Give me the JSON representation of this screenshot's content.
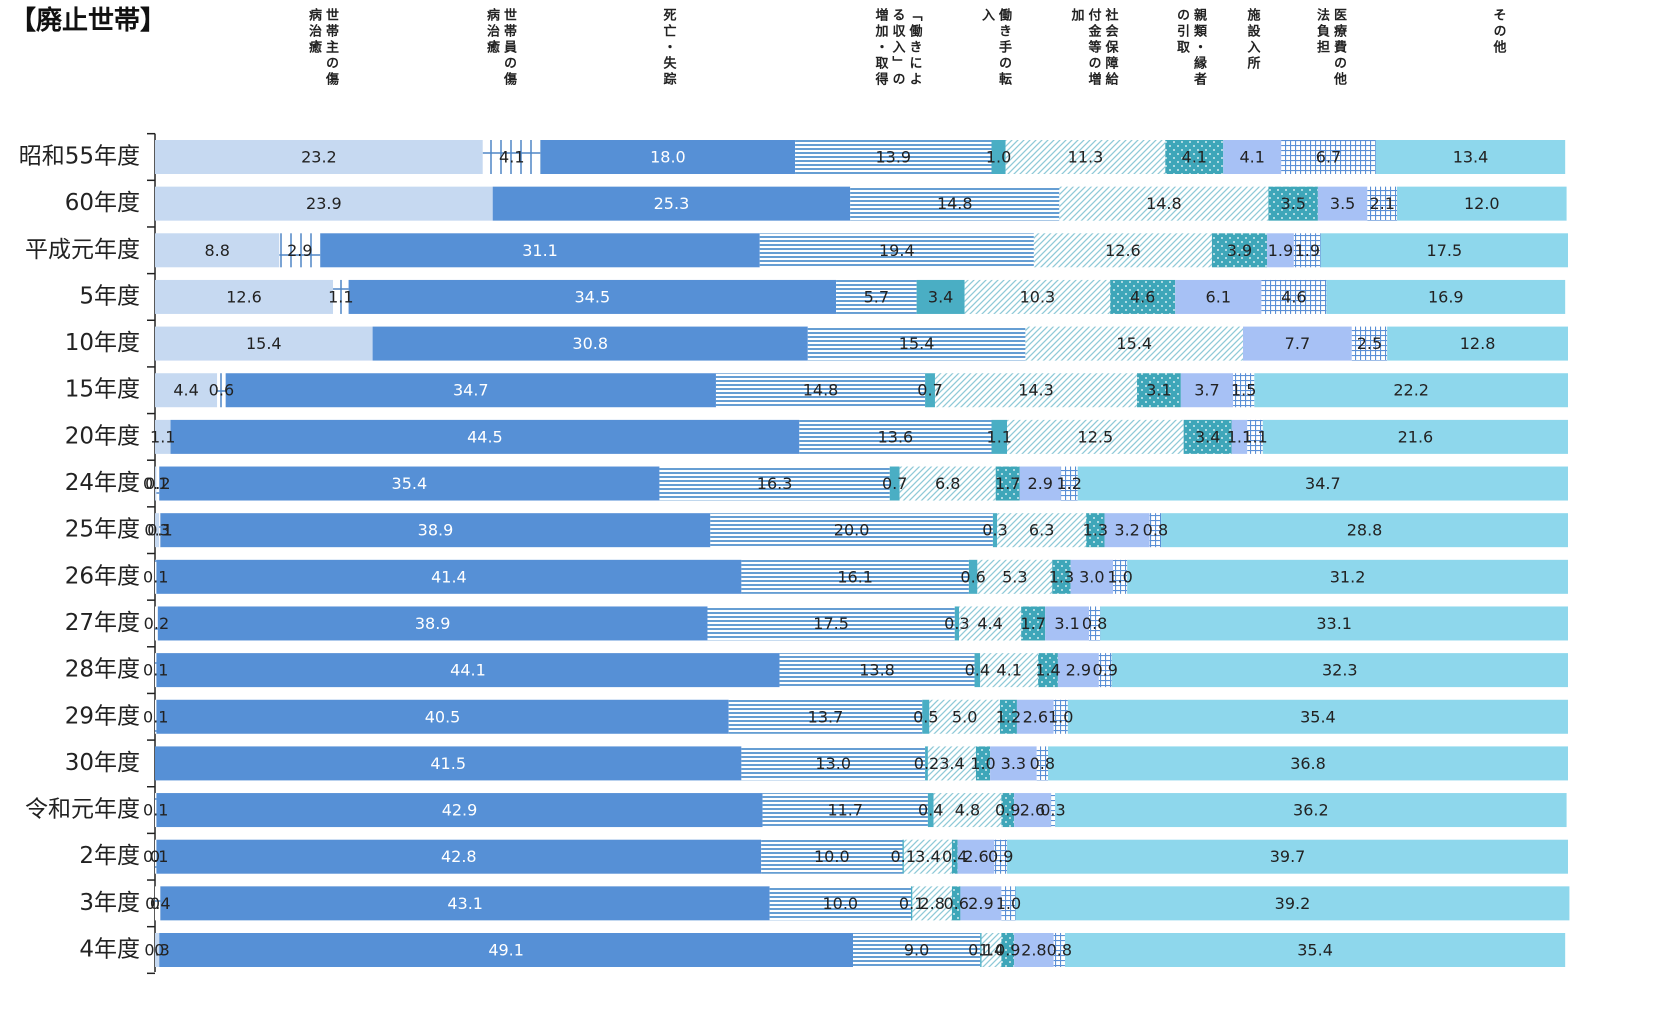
{
  "chart_data": {
    "type": "stacked-bar-horizontal",
    "title": "【廃止世帯】",
    "categories": [
      "昭和55年度",
      "60年度",
      "平成元年度",
      "5年度",
      "10年度",
      "15年度",
      "20年度",
      "24年度",
      "25年度",
      "26年度",
      "27年度",
      "28年度",
      "29年度",
      "30年度",
      "令和元年度",
      "2年度",
      "3年度",
      "4年度"
    ],
    "xlim": [
      0,
      100
    ],
    "series": [
      {
        "name": "世帯主の傷病治癒",
        "color": "#c6d9f1",
        "pattern": "solid",
        "label_color": "#222222",
        "values": [
          23.2,
          23.9,
          8.8,
          12.6,
          15.4,
          4.4,
          1.1,
          0.1,
          0.3,
          null,
          null,
          null,
          null,
          null,
          null,
          0,
          0,
          0.3
        ],
        "value_labels": [
          "23.2",
          "23.9",
          "8.8",
          "12.6",
          "15.4",
          "4.4",
          "1.1",
          "0.1",
          "0.3",
          null,
          null,
          null,
          null,
          null,
          null,
          "0",
          "0",
          "0.3"
        ]
      },
      {
        "name": "世帯員の傷病治癒",
        "color": "#4f86c6",
        "pattern": "grid",
        "label_color": "#222222",
        "values": [
          4.1,
          null,
          2.9,
          1.1,
          null,
          0.6,
          null,
          0.2,
          0.1,
          0.1,
          0.2,
          0.1,
          0.1,
          null,
          0.1,
          0.1,
          0.4,
          0
        ],
        "value_labels": [
          "4.1",
          null,
          "2.9",
          "1.1",
          null,
          "0.6",
          null,
          "0.2",
          "0.1",
          "0.1",
          "0.2",
          "0.1",
          "0.1",
          null,
          "0.1",
          "0.1",
          "0.4",
          "0"
        ]
      },
      {
        "name": "死亡・失踪",
        "color": "#5690d6",
        "pattern": "solid",
        "label_color": "#ffffff",
        "values": [
          18.0,
          25.3,
          31.1,
          34.5,
          30.8,
          34.7,
          44.5,
          35.4,
          38.9,
          41.4,
          38.9,
          44.1,
          40.5,
          41.5,
          42.9,
          42.8,
          43.1,
          49.1
        ],
        "value_labels": [
          "18.0",
          "25.3",
          "31.1",
          "34.5",
          "30.8",
          "34.7",
          "44.5",
          "35.4",
          "38.9",
          "41.4",
          "38.9",
          "44.1",
          "40.5",
          "41.5",
          "42.9",
          "42.8",
          "43.1",
          "49.1"
        ]
      },
      {
        "name": "「働きによる収入」の増加・取得",
        "color": "#3f86c8",
        "pattern": "hstripe",
        "label_color": "#222222",
        "values": [
          13.9,
          14.8,
          19.4,
          5.7,
          15.4,
          14.8,
          13.6,
          16.3,
          20.0,
          16.1,
          17.5,
          13.8,
          13.7,
          13.0,
          11.7,
          10.0,
          10.0,
          9.0
        ],
        "value_labels": [
          "13.9",
          "14.8",
          "19.4",
          "5.7",
          "15.4",
          "14.8",
          "13.6",
          "16.3",
          "20.0",
          "16.1",
          "17.5",
          "13.8",
          "13.7",
          "13.0",
          "11.7",
          "10.0",
          "10.0",
          "9.0"
        ]
      },
      {
        "name": "働き手の転入",
        "color": "#4aaec4",
        "pattern": "solid",
        "label_color": "#222222",
        "values": [
          1.0,
          null,
          null,
          3.4,
          null,
          0.7,
          1.1,
          0.7,
          0.3,
          0.6,
          0.3,
          0.4,
          0.5,
          0.2,
          0.4,
          0.1,
          0.1,
          0.1
        ],
        "value_labels": [
          "1.0",
          null,
          null,
          "3.4",
          null,
          "0.7",
          "1.1",
          "0.7",
          "0.3",
          "0.6",
          "0.3",
          "0.4",
          "0.5",
          "0.2",
          "0.4",
          "0.1",
          "0.1",
          "0.1"
        ]
      },
      {
        "name": "社会保障給付金等の増加",
        "color": "#8fcad8",
        "pattern": "diag",
        "label_color": "#222222",
        "values": [
          11.3,
          14.8,
          12.6,
          10.3,
          15.4,
          14.3,
          12.5,
          6.8,
          6.3,
          5.3,
          4.4,
          4.1,
          5.0,
          3.4,
          4.8,
          3.4,
          2.8,
          1.4
        ],
        "value_labels": [
          "11.3",
          "14.8",
          "12.6",
          "10.3",
          "15.4",
          "14.3",
          "12.5",
          "6.8",
          "6.3",
          "5.3",
          "4.4",
          "4.1",
          "5.0",
          "3.4",
          "4.8",
          "3.4",
          "2.8",
          "1.4"
        ]
      },
      {
        "name": "親類・縁者の引取",
        "color": "#3ea6b9",
        "pattern": "dots",
        "label_color": "#222222",
        "values": [
          4.1,
          3.5,
          3.9,
          4.6,
          null,
          3.1,
          3.4,
          1.7,
          1.3,
          1.3,
          1.7,
          1.4,
          1.2,
          1.0,
          0.9,
          0.4,
          0.6,
          0.9
        ],
        "value_labels": [
          "4.1",
          "3.5",
          "3.9",
          "4.6",
          null,
          "3.1",
          "3.4",
          "1.7",
          "1.3",
          "1.3",
          "1.7",
          "1.4",
          "1.2",
          "1.0",
          "0.9",
          "0.4",
          "0.6",
          "0.9"
        ]
      },
      {
        "name": "施設入所",
        "color": "#a7c1f5",
        "pattern": "solid",
        "label_color": "#222222",
        "values": [
          4.1,
          3.5,
          1.9,
          6.1,
          7.7,
          3.7,
          1.1,
          2.9,
          3.2,
          3.0,
          3.1,
          2.9,
          2.6,
          3.3,
          2.6,
          2.6,
          2.9,
          2.8
        ],
        "value_labels": [
          "4.1",
          "3.5",
          "1.9",
          "6.1",
          "7.7",
          "3.7",
          "1.1",
          "2.9",
          "3.2",
          "3.0",
          "3.1",
          "2.9",
          "2.6",
          "3.3",
          "2.6",
          "2.6",
          "2.9",
          "2.8"
        ]
      },
      {
        "name": "医療費の他法負担",
        "color": "#5a8fd6",
        "pattern": "fine-grid",
        "label_color": "#222222",
        "values": [
          6.7,
          2.1,
          1.9,
          4.6,
          2.5,
          1.5,
          1.1,
          1.2,
          0.8,
          1.0,
          0.8,
          0.9,
          1.0,
          0.8,
          0.3,
          0.9,
          1.0,
          0.8
        ],
        "value_labels": [
          "6.7",
          "2.1",
          "1.9",
          "4.6",
          "2.5",
          "1.5",
          "1.1",
          "1.2",
          "0.8",
          "1.0",
          "0.8",
          "0.9",
          "1.0",
          "0.8",
          "0.3",
          "0.9",
          "1.0",
          "0.8"
        ]
      },
      {
        "name": "その他",
        "color": "#8ed7ec",
        "pattern": "solid",
        "label_color": "#222222",
        "values": [
          13.4,
          12.0,
          17.5,
          16.9,
          12.8,
          22.2,
          21.6,
          34.7,
          28.8,
          31.2,
          33.1,
          32.3,
          35.4,
          36.8,
          36.2,
          39.7,
          39.2,
          35.4
        ],
        "value_labels": [
          "13.4",
          "12.0",
          "17.5",
          "16.9",
          "12.8",
          "22.2",
          "21.6",
          "34.7",
          "28.8",
          "31.2",
          "33.1",
          "32.3",
          "35.4",
          "36.8",
          "36.2",
          "39.7",
          "39.2",
          "35.4"
        ]
      }
    ]
  }
}
